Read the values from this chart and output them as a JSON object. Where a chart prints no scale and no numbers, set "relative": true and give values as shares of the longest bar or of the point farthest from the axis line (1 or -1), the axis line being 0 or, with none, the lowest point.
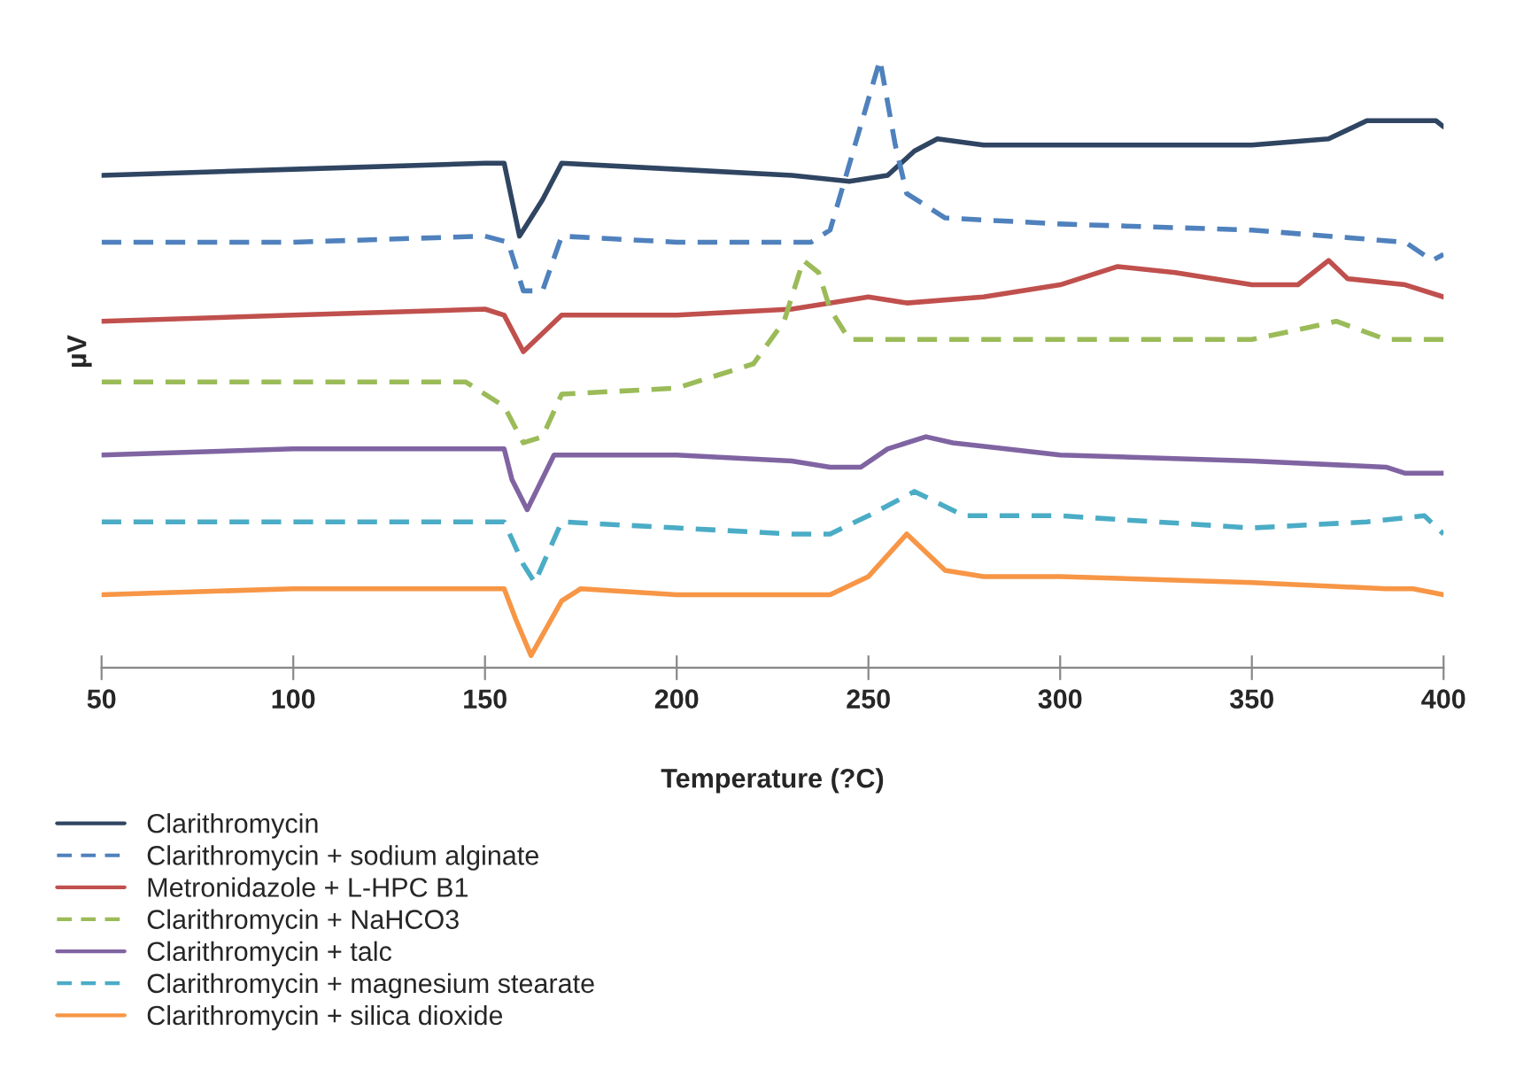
{
  "chart_data": {
    "type": "line",
    "relative": true,
    "xlabel": "Temperature (?C)",
    "ylabel": "µV",
    "xlim": [
      50,
      400
    ],
    "xticks": [
      50,
      100,
      150,
      200,
      250,
      300,
      350,
      400
    ],
    "grid": false,
    "legend": "bottom",
    "marker": "none",
    "series": [
      {
        "name": "Clarithromycin",
        "color": "#2f4562",
        "line_style": "solid",
        "x": [
          50,
          100,
          150,
          155,
          159,
          165,
          170,
          200,
          230,
          245,
          255,
          262,
          268,
          280,
          300,
          350,
          370,
          380,
          390,
          398,
          400
        ],
        "values": [
          0.81,
          0.82,
          0.83,
          0.83,
          0.71,
          0.77,
          0.83,
          0.82,
          0.81,
          0.8,
          0.81,
          0.85,
          0.87,
          0.86,
          0.86,
          0.86,
          0.87,
          0.9,
          0.9,
          0.9,
          0.89
        ]
      },
      {
        "name": "Clarithromycin + sodium alginate",
        "color": "#4f81bd",
        "line_style": "dashed",
        "x": [
          50,
          100,
          150,
          156,
          160,
          165,
          170,
          200,
          235,
          240,
          253,
          257,
          260,
          270,
          300,
          350,
          390,
          397,
          400
        ],
        "values": [
          0.7,
          0.7,
          0.71,
          0.7,
          0.62,
          0.62,
          0.71,
          0.7,
          0.7,
          0.72,
          1.0,
          0.86,
          0.78,
          0.74,
          0.73,
          0.72,
          0.7,
          0.67,
          0.68
        ]
      },
      {
        "name": "Metronidazole + L-HPC B1",
        "color": "#c0504d",
        "line_style": "solid",
        "x": [
          50,
          100,
          150,
          155,
          160,
          170,
          200,
          230,
          250,
          260,
          280,
          300,
          315,
          330,
          350,
          362,
          370,
          375,
          390,
          400
        ],
        "values": [
          0.57,
          0.58,
          0.59,
          0.58,
          0.52,
          0.58,
          0.58,
          0.59,
          0.61,
          0.6,
          0.61,
          0.63,
          0.66,
          0.65,
          0.63,
          0.63,
          0.67,
          0.64,
          0.63,
          0.61
        ]
      },
      {
        "name": "Clarithromycin + NaHCO3",
        "color": "#9bbb59",
        "line_style": "dashed",
        "x": [
          50,
          100,
          145,
          155,
          160,
          165,
          170,
          200,
          220,
          228,
          233,
          237,
          240,
          245,
          260,
          300,
          350,
          365,
          372,
          385,
          400
        ],
        "values": [
          0.47,
          0.47,
          0.47,
          0.43,
          0.37,
          0.38,
          0.45,
          0.46,
          0.5,
          0.57,
          0.67,
          0.65,
          0.59,
          0.54,
          0.54,
          0.54,
          0.54,
          0.56,
          0.57,
          0.54,
          0.54
        ]
      },
      {
        "name": "Clarithromycin + talc",
        "color": "#8064a2",
        "line_style": "solid",
        "x": [
          50,
          100,
          150,
          155,
          157,
          161,
          168,
          200,
          230,
          240,
          248,
          255,
          265,
          272,
          300,
          350,
          385,
          390,
          400
        ],
        "values": [
          0.35,
          0.36,
          0.36,
          0.36,
          0.31,
          0.26,
          0.35,
          0.35,
          0.34,
          0.33,
          0.33,
          0.36,
          0.38,
          0.37,
          0.35,
          0.34,
          0.33,
          0.32,
          0.32
        ]
      },
      {
        "name": "Clarithromycin + magnesium stearate",
        "color": "#4bacc6",
        "line_style": "dashed",
        "x": [
          50,
          100,
          150,
          155,
          160,
          163,
          170,
          200,
          230,
          240,
          250,
          262,
          275,
          300,
          350,
          380,
          395,
          400
        ],
        "values": [
          0.24,
          0.24,
          0.24,
          0.24,
          0.17,
          0.14,
          0.24,
          0.23,
          0.22,
          0.22,
          0.25,
          0.29,
          0.25,
          0.25,
          0.23,
          0.24,
          0.25,
          0.22
        ]
      },
      {
        "name": "Clarithromycin + silica dioxide",
        "color": "#f79646",
        "line_style": "solid",
        "x": [
          50,
          100,
          145,
          155,
          158,
          162,
          170,
          175,
          200,
          230,
          240,
          250,
          260,
          270,
          280,
          300,
          350,
          385,
          392,
          400
        ],
        "values": [
          0.12,
          0.13,
          0.13,
          0.13,
          0.08,
          0.02,
          0.11,
          0.13,
          0.12,
          0.12,
          0.12,
          0.15,
          0.22,
          0.16,
          0.15,
          0.15,
          0.14,
          0.13,
          0.13,
          0.12
        ]
      }
    ]
  }
}
